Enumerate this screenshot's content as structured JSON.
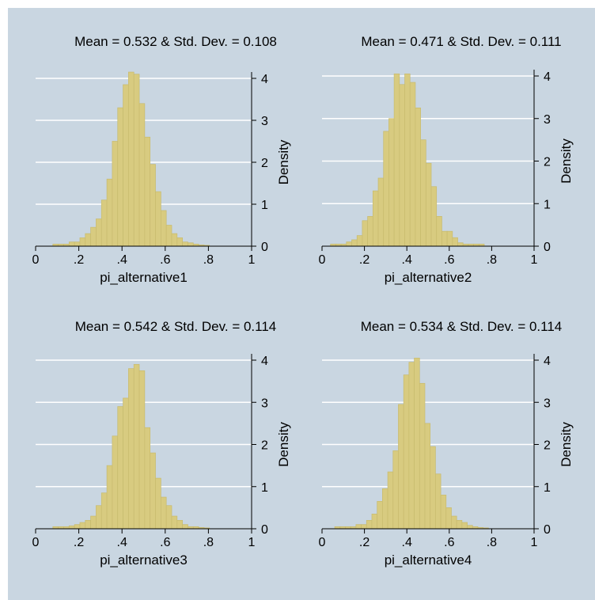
{
  "colors": {
    "panel_background": "#c9d6e1",
    "gridline": "#ffffff",
    "bar_fill": "#d8cb80",
    "bar_stroke": "#c8bb6e",
    "axis": "#000000"
  },
  "chart_data": [
    {
      "type": "bar",
      "title": "Mean = 0.532 & Std. Dev. = 0.108",
      "xlabel": "pi_alternative1",
      "ylabel": "Density",
      "xlim": [
        0,
        1
      ],
      "ylim": [
        0,
        4.15
      ],
      "xticks": [
        "0",
        ".2",
        ".4",
        ".6",
        ".8",
        "1"
      ],
      "yticks": [
        "0",
        "1",
        "2",
        "3",
        "4"
      ],
      "grid": true,
      "bin_start": 0.08,
      "bin_width": 0.025,
      "values": [
        0.05,
        0.05,
        0.05,
        0.1,
        0.1,
        0.2,
        0.3,
        0.45,
        0.65,
        1.1,
        1.6,
        2.5,
        3.3,
        3.85,
        4.15,
        4.1,
        3.4,
        2.6,
        1.95,
        1.3,
        0.85,
        0.5,
        0.3,
        0.2,
        0.1,
        0.08,
        0.05,
        0.03,
        0.02
      ]
    },
    {
      "type": "bar",
      "title": "Mean = 0.471 & Std. Dev. = 0.111",
      "xlabel": "pi_alternative2",
      "ylabel": "Density",
      "xlim": [
        0,
        1
      ],
      "ylim": [
        0,
        4.15
      ],
      "xticks": [
        "0",
        ".2",
        ".4",
        ".6",
        ".8",
        "1"
      ],
      "yticks": [
        "0",
        "1",
        "2",
        "3",
        "4"
      ],
      "grid": true,
      "bin_start": 0.04,
      "bin_width": 0.025,
      "values": [
        0.05,
        0.05,
        0.05,
        0.1,
        0.15,
        0.25,
        0.6,
        0.7,
        1.3,
        1.6,
        2.7,
        3.0,
        4.05,
        3.8,
        4.05,
        3.85,
        3.25,
        2.5,
        1.95,
        1.4,
        0.7,
        0.35,
        0.35,
        0.2,
        0.08,
        0.05,
        0.05,
        0.05,
        0.05
      ]
    },
    {
      "type": "bar",
      "title": "Mean = 0.542 & Std. Dev. = 0.114",
      "xlabel": "pi_alternative3",
      "ylabel": "Density",
      "xlim": [
        0,
        1
      ],
      "ylim": [
        0,
        4.15
      ],
      "xticks": [
        "0",
        ".2",
        ".4",
        ".6",
        ".8",
        "1"
      ],
      "yticks": [
        "0",
        "1",
        "2",
        "3",
        "4"
      ],
      "grid": true,
      "bin_start": 0.08,
      "bin_width": 0.025,
      "values": [
        0.05,
        0.05,
        0.05,
        0.07,
        0.1,
        0.15,
        0.2,
        0.3,
        0.55,
        0.85,
        1.5,
        2.2,
        2.9,
        3.1,
        3.8,
        3.9,
        3.75,
        2.4,
        1.8,
        1.2,
        0.75,
        0.55,
        0.3,
        0.2,
        0.1,
        0.05,
        0.05,
        0.03,
        0.02
      ]
    },
    {
      "type": "bar",
      "title": "Mean = 0.534 & Std. Dev. = 0.114",
      "xlabel": "pi_alternative4",
      "ylabel": "Density",
      "xlim": [
        0,
        1
      ],
      "ylim": [
        0,
        4.15
      ],
      "xticks": [
        "0",
        ".2",
        ".4",
        ".6",
        ".8",
        "1"
      ],
      "yticks": [
        "0",
        "1",
        "2",
        "3",
        "4"
      ],
      "grid": true,
      "bin_start": 0.06,
      "bin_width": 0.025,
      "values": [
        0.05,
        0.05,
        0.05,
        0.05,
        0.1,
        0.1,
        0.2,
        0.35,
        0.65,
        0.95,
        1.35,
        1.85,
        2.95,
        3.65,
        3.95,
        4.05,
        3.45,
        2.5,
        1.95,
        1.3,
        0.8,
        0.5,
        0.3,
        0.2,
        0.15,
        0.08,
        0.05,
        0.03,
        0.02
      ]
    }
  ]
}
